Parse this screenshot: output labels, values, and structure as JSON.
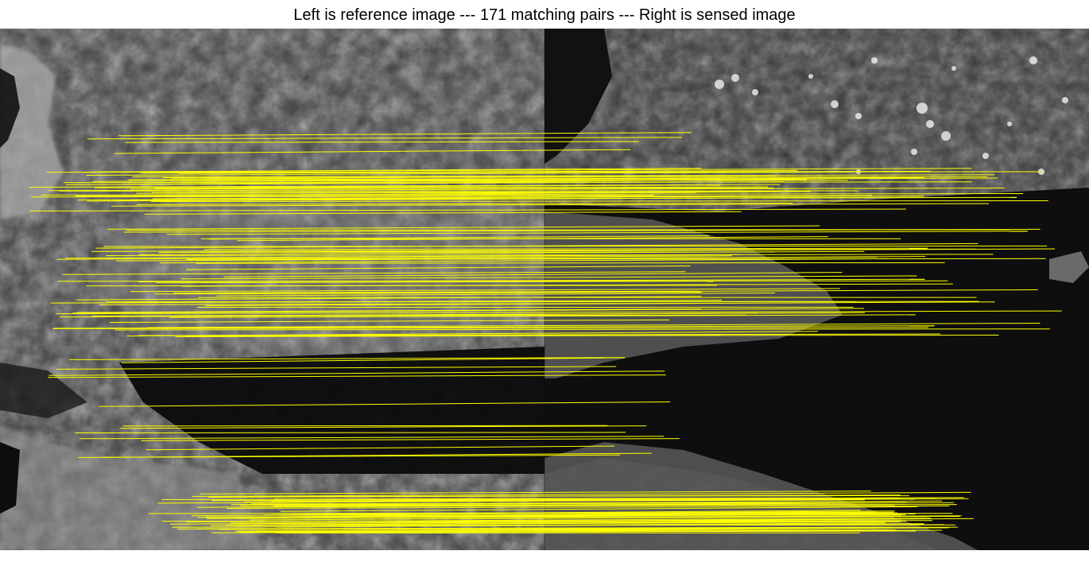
{
  "title": "Left is reference image --- 171 matching pairs --- Right is sensed image",
  "colors": {
    "match_line": "#ffff00",
    "background": "#ffffff"
  }
}
